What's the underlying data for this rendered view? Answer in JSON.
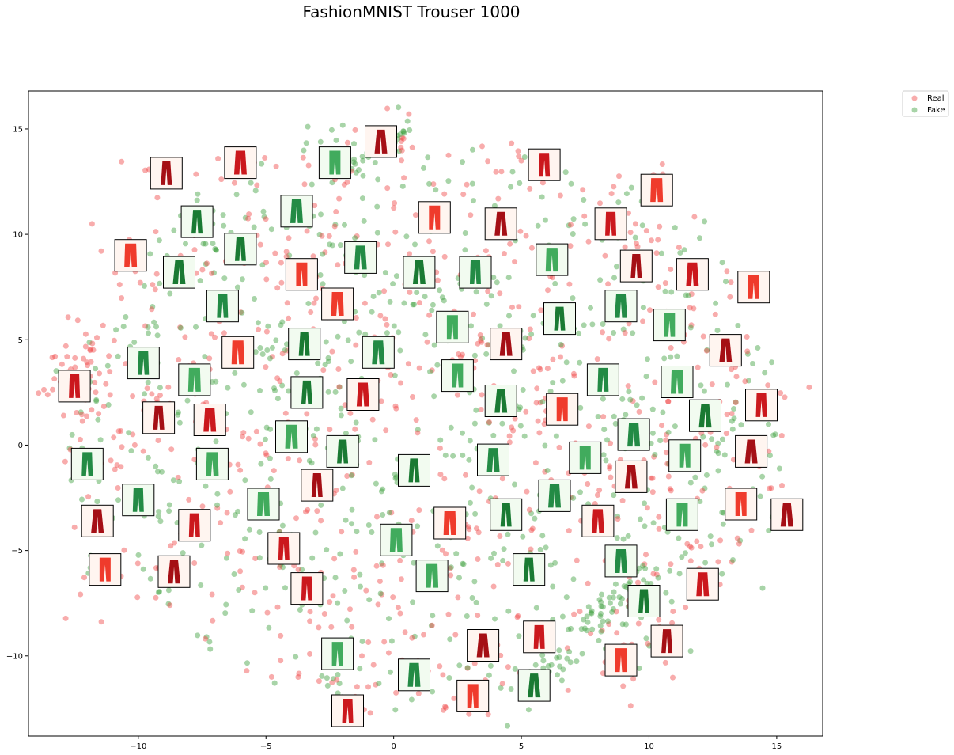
{
  "chart_data": {
    "type": "scatter",
    "title": "FashionMNIST Trouser 1000",
    "xlabel": "",
    "ylabel": "",
    "xlim": [
      -14.3,
      16.8
    ],
    "ylim": [
      -13.8,
      16.8
    ],
    "xticks": [
      -10,
      -5,
      0,
      5,
      10,
      15
    ],
    "yticks": [
      -10,
      -5,
      0,
      5,
      10,
      15
    ],
    "grid": false,
    "legend_position": "outside-top-right",
    "series": [
      {
        "name": "Real",
        "color": "#f04848",
        "x": [],
        "y": []
      },
      {
        "name": "Fake",
        "color": "#3f9f3f",
        "x": [],
        "y": []
      }
    ],
    "image_annotations": [
      {
        "x": -8.9,
        "y": 12.9,
        "series": "Real"
      },
      {
        "x": -6.0,
        "y": 13.4,
        "series": "Real"
      },
      {
        "x": -2.3,
        "y": 13.4,
        "series": "Fake"
      },
      {
        "x": -0.5,
        "y": 14.4,
        "series": "Real"
      },
      {
        "x": 5.9,
        "y": 13.3,
        "series": "Real"
      },
      {
        "x": 10.3,
        "y": 12.1,
        "series": "Real"
      },
      {
        "x": -7.7,
        "y": 10.6,
        "series": "Fake"
      },
      {
        "x": -3.8,
        "y": 11.1,
        "series": "Fake"
      },
      {
        "x": 1.6,
        "y": 10.8,
        "series": "Real"
      },
      {
        "x": 4.2,
        "y": 10.5,
        "series": "Real"
      },
      {
        "x": 8.5,
        "y": 10.5,
        "series": "Real"
      },
      {
        "x": -10.3,
        "y": 9.0,
        "series": "Real"
      },
      {
        "x": -6.0,
        "y": 9.3,
        "series": "Fake"
      },
      {
        "x": -1.3,
        "y": 8.9,
        "series": "Fake"
      },
      {
        "x": -3.6,
        "y": 8.1,
        "series": "Real"
      },
      {
        "x": 1.0,
        "y": 8.2,
        "series": "Fake"
      },
      {
        "x": 3.2,
        "y": 8.2,
        "series": "Fake"
      },
      {
        "x": 6.2,
        "y": 8.8,
        "series": "Fake"
      },
      {
        "x": 9.5,
        "y": 8.5,
        "series": "Real"
      },
      {
        "x": 11.7,
        "y": 8.1,
        "series": "Real"
      },
      {
        "x": 14.1,
        "y": 7.5,
        "series": "Real"
      },
      {
        "x": -8.4,
        "y": 8.2,
        "series": "Fake"
      },
      {
        "x": -6.7,
        "y": 6.6,
        "series": "Fake"
      },
      {
        "x": -2.2,
        "y": 6.7,
        "series": "Real"
      },
      {
        "x": 6.5,
        "y": 6.0,
        "series": "Fake"
      },
      {
        "x": 8.9,
        "y": 6.6,
        "series": "Fake"
      },
      {
        "x": 10.8,
        "y": 5.7,
        "series": "Fake"
      },
      {
        "x": 13.0,
        "y": 4.5,
        "series": "Real"
      },
      {
        "x": -9.8,
        "y": 3.9,
        "series": "Fake"
      },
      {
        "x": -6.1,
        "y": 4.4,
        "series": "Real"
      },
      {
        "x": -3.5,
        "y": 4.8,
        "series": "Fake"
      },
      {
        "x": -0.6,
        "y": 4.4,
        "series": "Fake"
      },
      {
        "x": 2.3,
        "y": 5.6,
        "series": "Fake"
      },
      {
        "x": 4.4,
        "y": 4.8,
        "series": "Real"
      },
      {
        "x": -12.5,
        "y": 2.8,
        "series": "Real"
      },
      {
        "x": -7.8,
        "y": 3.1,
        "series": "Fake"
      },
      {
        "x": -3.4,
        "y": 2.5,
        "series": "Fake"
      },
      {
        "x": -1.2,
        "y": 2.4,
        "series": "Real"
      },
      {
        "x": 2.5,
        "y": 3.3,
        "series": "Fake"
      },
      {
        "x": 4.2,
        "y": 2.1,
        "series": "Fake"
      },
      {
        "x": 8.2,
        "y": 3.1,
        "series": "Fake"
      },
      {
        "x": 11.1,
        "y": 3.0,
        "series": "Fake"
      },
      {
        "x": -9.2,
        "y": 1.3,
        "series": "Real"
      },
      {
        "x": -7.2,
        "y": 1.2,
        "series": "Real"
      },
      {
        "x": 6.6,
        "y": 1.7,
        "series": "Real"
      },
      {
        "x": 12.2,
        "y": 1.4,
        "series": "Fake"
      },
      {
        "x": 14.4,
        "y": 1.9,
        "series": "Real"
      },
      {
        "x": -4.0,
        "y": 0.4,
        "series": "Fake"
      },
      {
        "x": -2.0,
        "y": -0.3,
        "series": "Fake"
      },
      {
        "x": 9.4,
        "y": 0.5,
        "series": "Fake"
      },
      {
        "x": 11.4,
        "y": -0.5,
        "series": "Fake"
      },
      {
        "x": 14.0,
        "y": -0.3,
        "series": "Real"
      },
      {
        "x": -12.0,
        "y": -0.9,
        "series": "Fake"
      },
      {
        "x": -7.1,
        "y": -0.9,
        "series": "Fake"
      },
      {
        "x": 0.8,
        "y": -1.2,
        "series": "Fake"
      },
      {
        "x": 3.9,
        "y": -0.7,
        "series": "Fake"
      },
      {
        "x": 7.5,
        "y": -0.6,
        "series": "Fake"
      },
      {
        "x": 9.3,
        "y": -1.5,
        "series": "Real"
      },
      {
        "x": -10.0,
        "y": -2.6,
        "series": "Fake"
      },
      {
        "x": -5.1,
        "y": -2.8,
        "series": "Fake"
      },
      {
        "x": -3.0,
        "y": -1.9,
        "series": "Real"
      },
      {
        "x": 6.3,
        "y": -2.4,
        "series": "Fake"
      },
      {
        "x": 13.6,
        "y": -2.8,
        "series": "Real"
      },
      {
        "x": -11.6,
        "y": -3.6,
        "series": "Real"
      },
      {
        "x": -7.8,
        "y": -3.8,
        "series": "Real"
      },
      {
        "x": 2.2,
        "y": -3.7,
        "series": "Real"
      },
      {
        "x": 4.4,
        "y": -3.3,
        "series": "Fake"
      },
      {
        "x": 8.0,
        "y": -3.6,
        "series": "Real"
      },
      {
        "x": 11.3,
        "y": -3.3,
        "series": "Fake"
      },
      {
        "x": 15.4,
        "y": -3.3,
        "series": "Real"
      },
      {
        "x": -4.3,
        "y": -4.9,
        "series": "Real"
      },
      {
        "x": 0.1,
        "y": -4.5,
        "series": "Fake"
      },
      {
        "x": 5.3,
        "y": -5.9,
        "series": "Fake"
      },
      {
        "x": 8.9,
        "y": -5.5,
        "series": "Fake"
      },
      {
        "x": -11.3,
        "y": -5.9,
        "series": "Real"
      },
      {
        "x": -8.6,
        "y": -6.0,
        "series": "Real"
      },
      {
        "x": -3.4,
        "y": -6.8,
        "series": "Real"
      },
      {
        "x": 1.5,
        "y": -6.2,
        "series": "Fake"
      },
      {
        "x": 9.8,
        "y": -7.4,
        "series": "Fake"
      },
      {
        "x": 12.1,
        "y": -6.6,
        "series": "Real"
      },
      {
        "x": -2.2,
        "y": -9.9,
        "series": "Fake"
      },
      {
        "x": 3.5,
        "y": -9.5,
        "series": "Real"
      },
      {
        "x": 5.7,
        "y": -9.1,
        "series": "Real"
      },
      {
        "x": 8.9,
        "y": -10.2,
        "series": "Real"
      },
      {
        "x": 10.7,
        "y": -9.3,
        "series": "Real"
      },
      {
        "x": 0.8,
        "y": -10.9,
        "series": "Fake"
      },
      {
        "x": 3.1,
        "y": -11.9,
        "series": "Real"
      },
      {
        "x": 5.5,
        "y": -11.4,
        "series": "Fake"
      },
      {
        "x": -1.8,
        "y": -12.6,
        "series": "Real"
      }
    ]
  }
}
